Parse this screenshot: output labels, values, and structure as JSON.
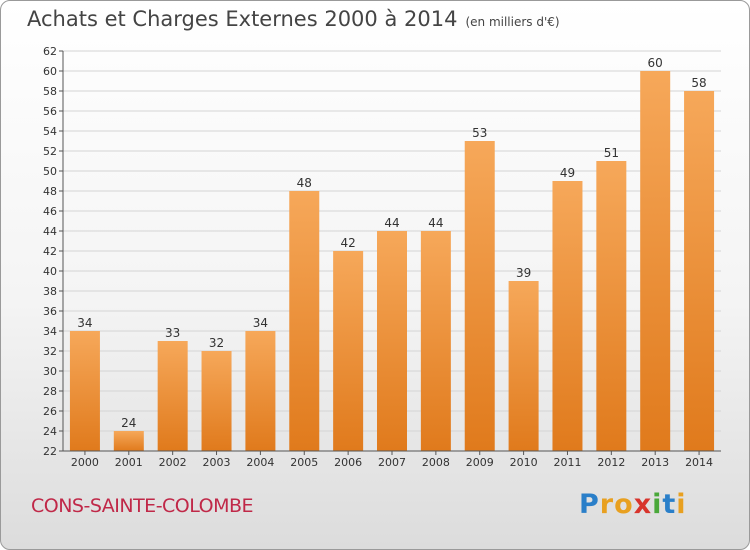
{
  "title": "Achats et Charges Externes 2000 à 2014",
  "unit_note": "(en milliers d'€)",
  "commune": "CONS-SAINTE-COLOMBE",
  "logo": {
    "text": "Proxiti",
    "letters": [
      "P",
      "r",
      "o",
      "x",
      "i",
      "t",
      "i"
    ],
    "colors": [
      "#2a7fc9",
      "#e8a020",
      "#e8a020",
      "#d8342c",
      "#4aa83a",
      "#2a7fc9",
      "#e8a020"
    ]
  },
  "colors": {
    "bar_top": "#f6a85a",
    "bar_bottom": "#e07a1c",
    "commune": "#c02848"
  },
  "chart_data": {
    "type": "bar",
    "title": "Achats et Charges Externes 2000 à 2014",
    "categories": [
      "2000",
      "2001",
      "2002",
      "2003",
      "2004",
      "2005",
      "2006",
      "2007",
      "2008",
      "2009",
      "2010",
      "2011",
      "2012",
      "2013",
      "2014"
    ],
    "values": [
      34,
      24,
      33,
      32,
      34,
      48,
      42,
      44,
      44,
      53,
      39,
      49,
      51,
      60,
      58
    ],
    "ylim": [
      22,
      62
    ],
    "yticks": [
      22,
      24,
      26,
      28,
      30,
      32,
      34,
      36,
      38,
      40,
      42,
      44,
      46,
      48,
      50,
      52,
      54,
      56,
      58,
      60,
      62
    ],
    "grid": true
  }
}
